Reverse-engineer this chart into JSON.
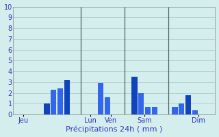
{
  "xlabel": "Précipitations 24h ( mm )",
  "bg_color": "#d4eeee",
  "ylim": [
    0,
    10
  ],
  "yticks": [
    1,
    2,
    3,
    4,
    5,
    6,
    7,
    8,
    9,
    10
  ],
  "ytick_extra": 0,
  "grid_color": "#b0cccc",
  "bar_positions": [
    5,
    6,
    7,
    8,
    13,
    14,
    18,
    19,
    20,
    21,
    24,
    25,
    26,
    27
  ],
  "bar_heights": [
    1.0,
    2.3,
    2.4,
    3.2,
    2.9,
    1.6,
    3.5,
    2.0,
    0.7,
    0.7,
    0.7,
    1.0,
    1.8,
    0.4
  ],
  "bar_colors": [
    "#1144bb",
    "#3366ee",
    "#3366ee",
    "#1144bb",
    "#3366ee",
    "#3366ee",
    "#1144bb",
    "#3366ee",
    "#3366ee",
    "#3366ee",
    "#3366ee",
    "#3366ee",
    "#1144bb",
    "#3366ee"
  ],
  "day_labels": [
    "Jeu",
    "Lun",
    "Ven",
    "Sam",
    "Dim"
  ],
  "day_x": [
    1.5,
    11.5,
    14.5,
    19.5,
    27.5
  ],
  "vline_x": [
    10,
    16.5,
    23
  ],
  "xlim": [
    0,
    30
  ],
  "bar_width": 0.85,
  "label_color": "#3333bb",
  "tick_fontsize": 7,
  "xlabel_fontsize": 8,
  "spine_color": "#888888"
}
